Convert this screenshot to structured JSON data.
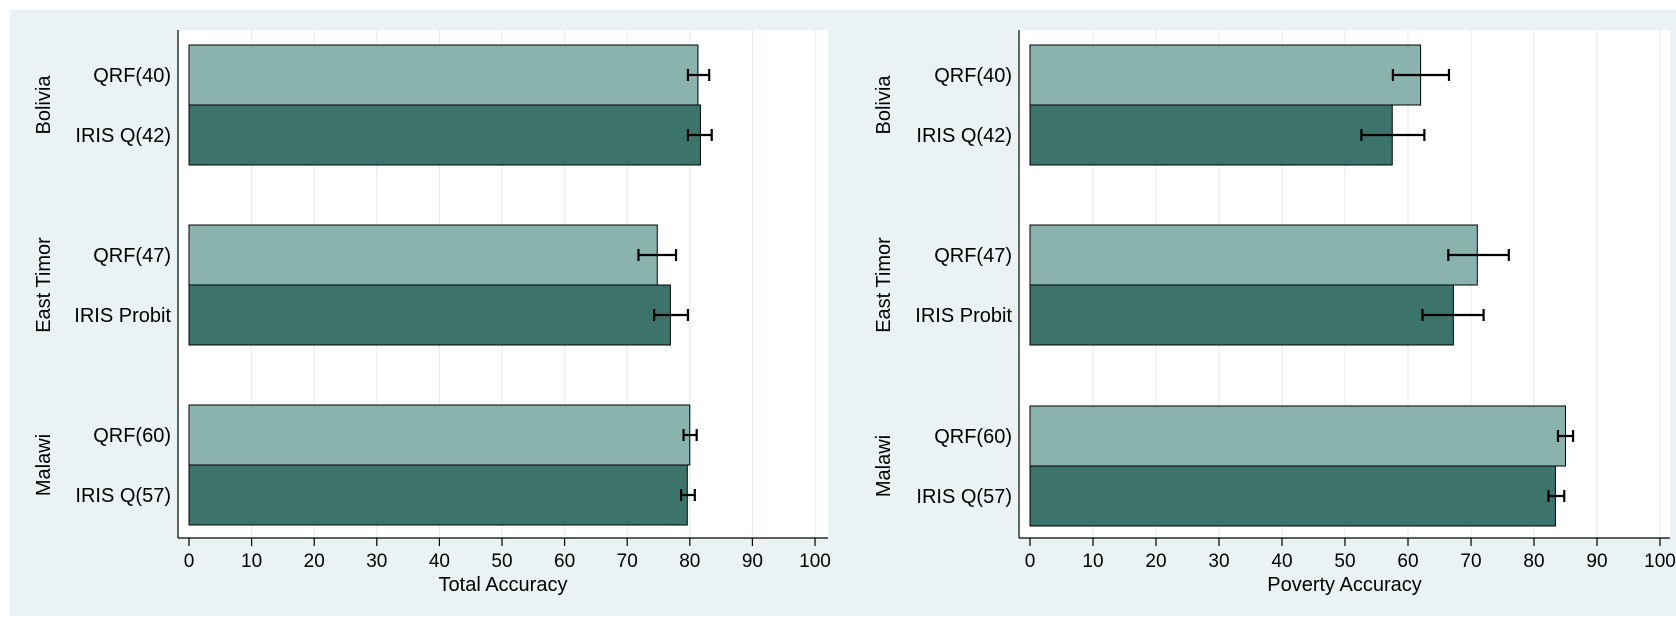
{
  "colors": {
    "outer_bg": "#eaf2f3",
    "plot_bg": "#ffffff",
    "grid": "#e6ecee",
    "bar_light": "#8ab3ad",
    "bar_dark": "#3c746c",
    "bar_edge": "#000000",
    "error_bar": "#000000"
  },
  "chart_data": [
    {
      "type": "bar",
      "orientation": "horizontal",
      "xlabel": "Total Accuracy",
      "xlim": [
        0,
        100
      ],
      "xticks": [
        0,
        10,
        20,
        30,
        40,
        50,
        60,
        70,
        80,
        90,
        100
      ],
      "grid": true,
      "groups": [
        {
          "name": "Bolivia",
          "bars": [
            {
              "label": "QRF(40)",
              "value": 81.3,
              "err_low": 79.7,
              "err_high": 83.1,
              "color": "light"
            },
            {
              "label": "IRIS Q(42)",
              "value": 81.7,
              "err_low": 79.7,
              "err_high": 83.5,
              "color": "dark"
            }
          ]
        },
        {
          "name": "East Timor",
          "bars": [
            {
              "label": "QRF(47)",
              "value": 74.8,
              "err_low": 71.8,
              "err_high": 77.8,
              "color": "light"
            },
            {
              "label": "IRIS Probit",
              "value": 76.9,
              "err_low": 74.3,
              "err_high": 79.7,
              "color": "dark"
            }
          ]
        },
        {
          "name": "Malawi",
          "bars": [
            {
              "label": "QRF(60)",
              "value": 80.0,
              "err_low": 79.0,
              "err_high": 81.1,
              "color": "light"
            },
            {
              "label": "IRIS Q(57)",
              "value": 79.6,
              "err_low": 78.6,
              "err_high": 80.8,
              "color": "dark"
            }
          ]
        }
      ]
    },
    {
      "type": "bar",
      "orientation": "horizontal",
      "xlabel": "Poverty Accuracy",
      "xlim": [
        0,
        100
      ],
      "xticks": [
        0,
        10,
        20,
        30,
        40,
        50,
        60,
        70,
        80,
        90,
        100
      ],
      "grid": true,
      "groups": [
        {
          "name": "Bolivia",
          "bars": [
            {
              "label": "QRF(40)",
              "value": 62.0,
              "err_low": 57.6,
              "err_high": 66.5,
              "color": "light"
            },
            {
              "label": "IRIS Q(42)",
              "value": 57.5,
              "err_low": 52.6,
              "err_high": 62.6,
              "color": "dark"
            }
          ]
        },
        {
          "name": "East Timor",
          "bars": [
            {
              "label": "QRF(47)",
              "value": 71.0,
              "err_low": 66.4,
              "err_high": 76.0,
              "color": "light"
            },
            {
              "label": "IRIS Probit",
              "value": 67.2,
              "err_low": 62.3,
              "err_high": 72.0,
              "color": "dark"
            }
          ]
        },
        {
          "name": "Malawi",
          "bars": [
            {
              "label": "QRF(60)",
              "value": 85.0,
              "err_low": 83.8,
              "err_high": 86.2,
              "color": "light"
            },
            {
              "label": "IRIS Q(57)",
              "value": 83.4,
              "err_low": 82.3,
              "err_high": 84.8,
              "color": "dark"
            }
          ]
        }
      ]
    }
  ]
}
